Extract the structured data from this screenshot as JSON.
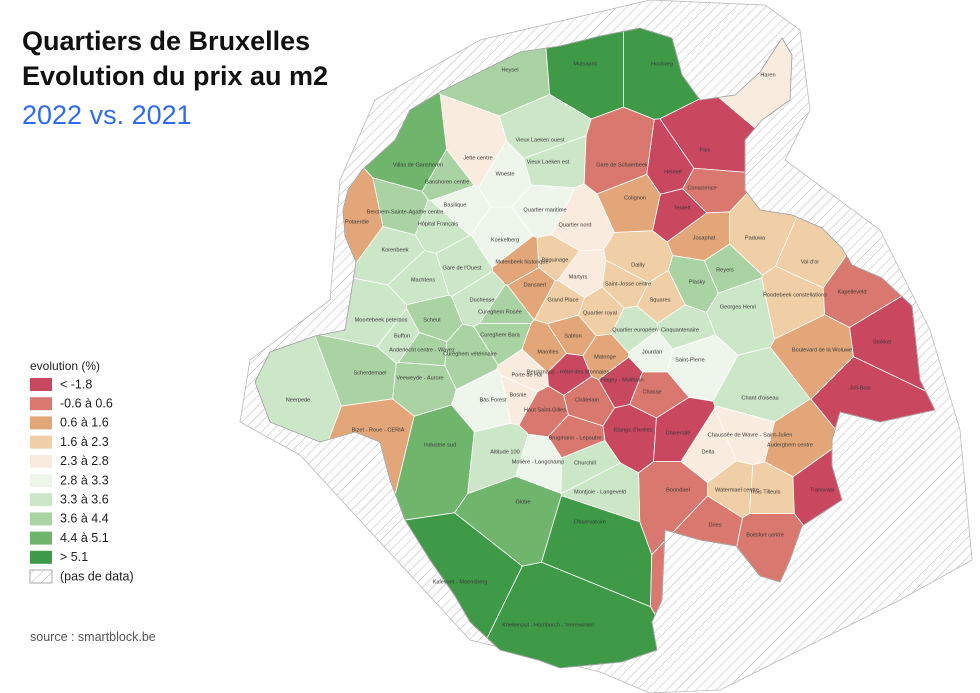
{
  "title_lines": [
    "Quartiers de Bruxelles",
    "Evolution du prix au m2"
  ],
  "subtitle": "2022 vs.  2021",
  "legend": {
    "title": "evolution (%)",
    "items": [
      {
        "label": "< -1.8",
        "color": "#c9475f"
      },
      {
        "label": "-0.6 à 0.6",
        "color": "#d9786e"
      },
      {
        "label": "0.6 à 1.6",
        "color": "#e3a679"
      },
      {
        "label": "1.6 à 2.3",
        "color": "#f0cfa6"
      },
      {
        "label": "2.3 à 2.8",
        "color": "#f9ecde"
      },
      {
        "label": "2.8 à 3.3",
        "color": "#eef5ea"
      },
      {
        "label": "3.3 à 3.6",
        "color": "#cce6c8"
      },
      {
        "label": "3.6 à 4.4",
        "color": "#a9d3a2"
      },
      {
        "label": "4.4 à 5.1",
        "color": "#6fb56c"
      },
      {
        "label": "> 5.1",
        "color": "#3f9a47"
      },
      {
        "label": "(pas de data)",
        "hatched": true
      }
    ]
  },
  "neighborhoods": [
    {
      "name": "Heysel",
      "color": "#a9d3a2"
    },
    {
      "name": "Mutsaard",
      "color": "#3f9a47"
    },
    {
      "name": "Houtweg",
      "color": "#3f9a47"
    },
    {
      "name": "Haren",
      "color": "#f9ecde"
    },
    {
      "name": "Jette centre",
      "color": "#f9ecde"
    },
    {
      "name": "Woeste",
      "color": "#eef5ea"
    },
    {
      "name": "Vieux Laeken ouest",
      "color": "#cce6c8"
    },
    {
      "name": "Vieux Laeken est",
      "color": "#cce6c8"
    },
    {
      "name": "Villas de Ganshoren",
      "color": "#6fb56c"
    },
    {
      "name": "Ganshoren centre",
      "color": "#a9d3a2"
    },
    {
      "name": "Basilique",
      "color": "#eef5ea"
    },
    {
      "name": "Quartier maritime",
      "color": "#eef5ea"
    },
    {
      "name": "Quartier nord",
      "color": "#f9ecde"
    },
    {
      "name": "Helmet",
      "color": "#c9475f"
    },
    {
      "name": "Paix",
      "color": "#c9475f"
    },
    {
      "name": "Colignon",
      "color": "#e3a679"
    },
    {
      "name": "Gare de Schaerbeek",
      "color": "#d9786e"
    },
    {
      "name": "Terdelt",
      "color": "#c9475f"
    },
    {
      "name": "Conscience",
      "color": "#d9786e"
    },
    {
      "name": "Josaphat",
      "color": "#e3a679"
    },
    {
      "name": "Paduwa",
      "color": "#f0cfa6"
    },
    {
      "name": "Val d'or",
      "color": "#f0cfa6"
    },
    {
      "name": "Roodebeek constellations",
      "color": "#f0cfa6"
    },
    {
      "name": "Kapelleveld",
      "color": "#d9786e"
    },
    {
      "name": "Stokkel",
      "color": "#c9475f"
    },
    {
      "name": "Joli-Bois",
      "color": "#c9475f"
    },
    {
      "name": "Koekelberg",
      "color": "#eef5ea"
    },
    {
      "name": "Berchem-Sainte-Agathe centre",
      "color": "#a9d3a2"
    },
    {
      "name": "Potaerdie",
      "color": "#e3a679"
    },
    {
      "name": "Hôpital Français",
      "color": "#cce6c8"
    },
    {
      "name": "Korenbeek",
      "color": "#cce6c8"
    },
    {
      "name": "Machtens",
      "color": "#cce6c8"
    },
    {
      "name": "Gare de l'Ouest",
      "color": "#cce6c8"
    },
    {
      "name": "Molenbeek historique",
      "color": "#e3a679"
    },
    {
      "name": "Dansaert",
      "color": "#e3a679"
    },
    {
      "name": "Béguinage",
      "color": "#f0cfa6"
    },
    {
      "name": "Martyrs",
      "color": "#f9ecde"
    },
    {
      "name": "Dailly",
      "color": "#f0cfa6"
    },
    {
      "name": "Saint-Josse centre",
      "color": "#f0cfa6"
    },
    {
      "name": "Squares",
      "color": "#f0cfa6"
    },
    {
      "name": "Plasky",
      "color": "#a9d3a2"
    },
    {
      "name": "Reyers",
      "color": "#a9d3a2"
    },
    {
      "name": "Georges Henri",
      "color": "#cce6c8"
    },
    {
      "name": "Grand Place",
      "color": "#f0cfa6"
    },
    {
      "name": "Duchesse",
      "color": "#cce6c8"
    },
    {
      "name": "Cureghem Rosée",
      "color": "#a9d3a2"
    },
    {
      "name": "Cureghem Bara",
      "color": "#a9d3a2"
    },
    {
      "name": "Quartier royal",
      "color": "#f0cfa6"
    },
    {
      "name": "Quartier européen",
      "color": "#cce6c8"
    },
    {
      "name": "Cinquantenaire",
      "color": "#cce6c8"
    },
    {
      "name": "Marolles",
      "color": "#e3a679"
    },
    {
      "name": "Sablon",
      "color": "#e3a679"
    },
    {
      "name": "Matonge",
      "color": "#e3a679"
    },
    {
      "name": "Jourdan",
      "color": "#eef5ea"
    },
    {
      "name": "Saint-Pierre",
      "color": "#eef5ea"
    },
    {
      "name": "Chant d'oiseau",
      "color": "#cce6c8"
    },
    {
      "name": "Boulevard de la Woluwe",
      "color": "#e3a679"
    },
    {
      "name": "Moortebeek peterbos",
      "color": "#cce6c8"
    },
    {
      "name": "Buffon",
      "color": "#cce6c8"
    },
    {
      "name": "Scheut",
      "color": "#a9d3a2"
    },
    {
      "name": "Anderlecht centre - Wayez",
      "color": "#a9d3a2"
    },
    {
      "name": "Cureghem vétérinaire",
      "color": "#a9d3a2"
    },
    {
      "name": "Neerpede",
      "color": "#cce6c8"
    },
    {
      "name": "Scherdemael",
      "color": "#a9d3a2"
    },
    {
      "name": "Veeweyde - Aurore",
      "color": "#a9d3a2"
    },
    {
      "name": "Bizet - Roue - CERIA",
      "color": "#e3a679"
    },
    {
      "name": "Industrie sud",
      "color": "#6fb56c"
    },
    {
      "name": "Porte de Hal",
      "color": "#f9ecde"
    },
    {
      "name": "Bosnie",
      "color": "#f9ecde"
    },
    {
      "name": "Bas Forest",
      "color": "#eef5ea"
    },
    {
      "name": "Châtelain",
      "color": "#d9786e"
    },
    {
      "name": "Berckmans - Hôtel des Monnaies",
      "color": "#c9475f"
    },
    {
      "name": "Haut Saint-Gilles",
      "color": "#d9786e"
    },
    {
      "name": "Flagey - Malibran",
      "color": "#c9475f"
    },
    {
      "name": "Boondael",
      "color": "#d9786e"
    },
    {
      "name": "Etangs d'Ixelles",
      "color": "#c9475f"
    },
    {
      "name": "Université",
      "color": "#c9475f"
    },
    {
      "name": "Chasse",
      "color": "#d9786e"
    },
    {
      "name": "Brugmann - Lepoutre",
      "color": "#d9786e"
    },
    {
      "name": "Altitude 100",
      "color": "#cce6c8"
    },
    {
      "name": "Molière - Longchamp",
      "color": "#eef5ea"
    },
    {
      "name": "Churchill",
      "color": "#cce6c8"
    },
    {
      "name": "Montjoie - Langeveld",
      "color": "#cce6c8"
    },
    {
      "name": "Globe",
      "color": "#6fb56c"
    },
    {
      "name": "Observatoire",
      "color": "#3f9a47"
    },
    {
      "name": "Kriekenput - Homborch - Verrewinkel",
      "color": "#3f9a47"
    },
    {
      "name": "Kalevoet - Moensberg",
      "color": "#3f9a47"
    },
    {
      "name": "Watermael centre",
      "color": "#f0cfa6"
    },
    {
      "name": "Trois Tilleuls",
      "color": "#f0cfa6"
    },
    {
      "name": "Boitsfort centre",
      "color": "#d9786e"
    },
    {
      "name": "Dries",
      "color": "#d9786e"
    },
    {
      "name": "Transvaal",
      "color": "#c9475f"
    },
    {
      "name": "Auderghem centre",
      "color": "#e3a679"
    },
    {
      "name": "Chaussée de Wavre - Saint-Julien",
      "color": "#f9ecde"
    },
    {
      "name": "Delta",
      "color": "#f9ecde"
    }
  ],
  "source": "source : smartblock.be"
}
